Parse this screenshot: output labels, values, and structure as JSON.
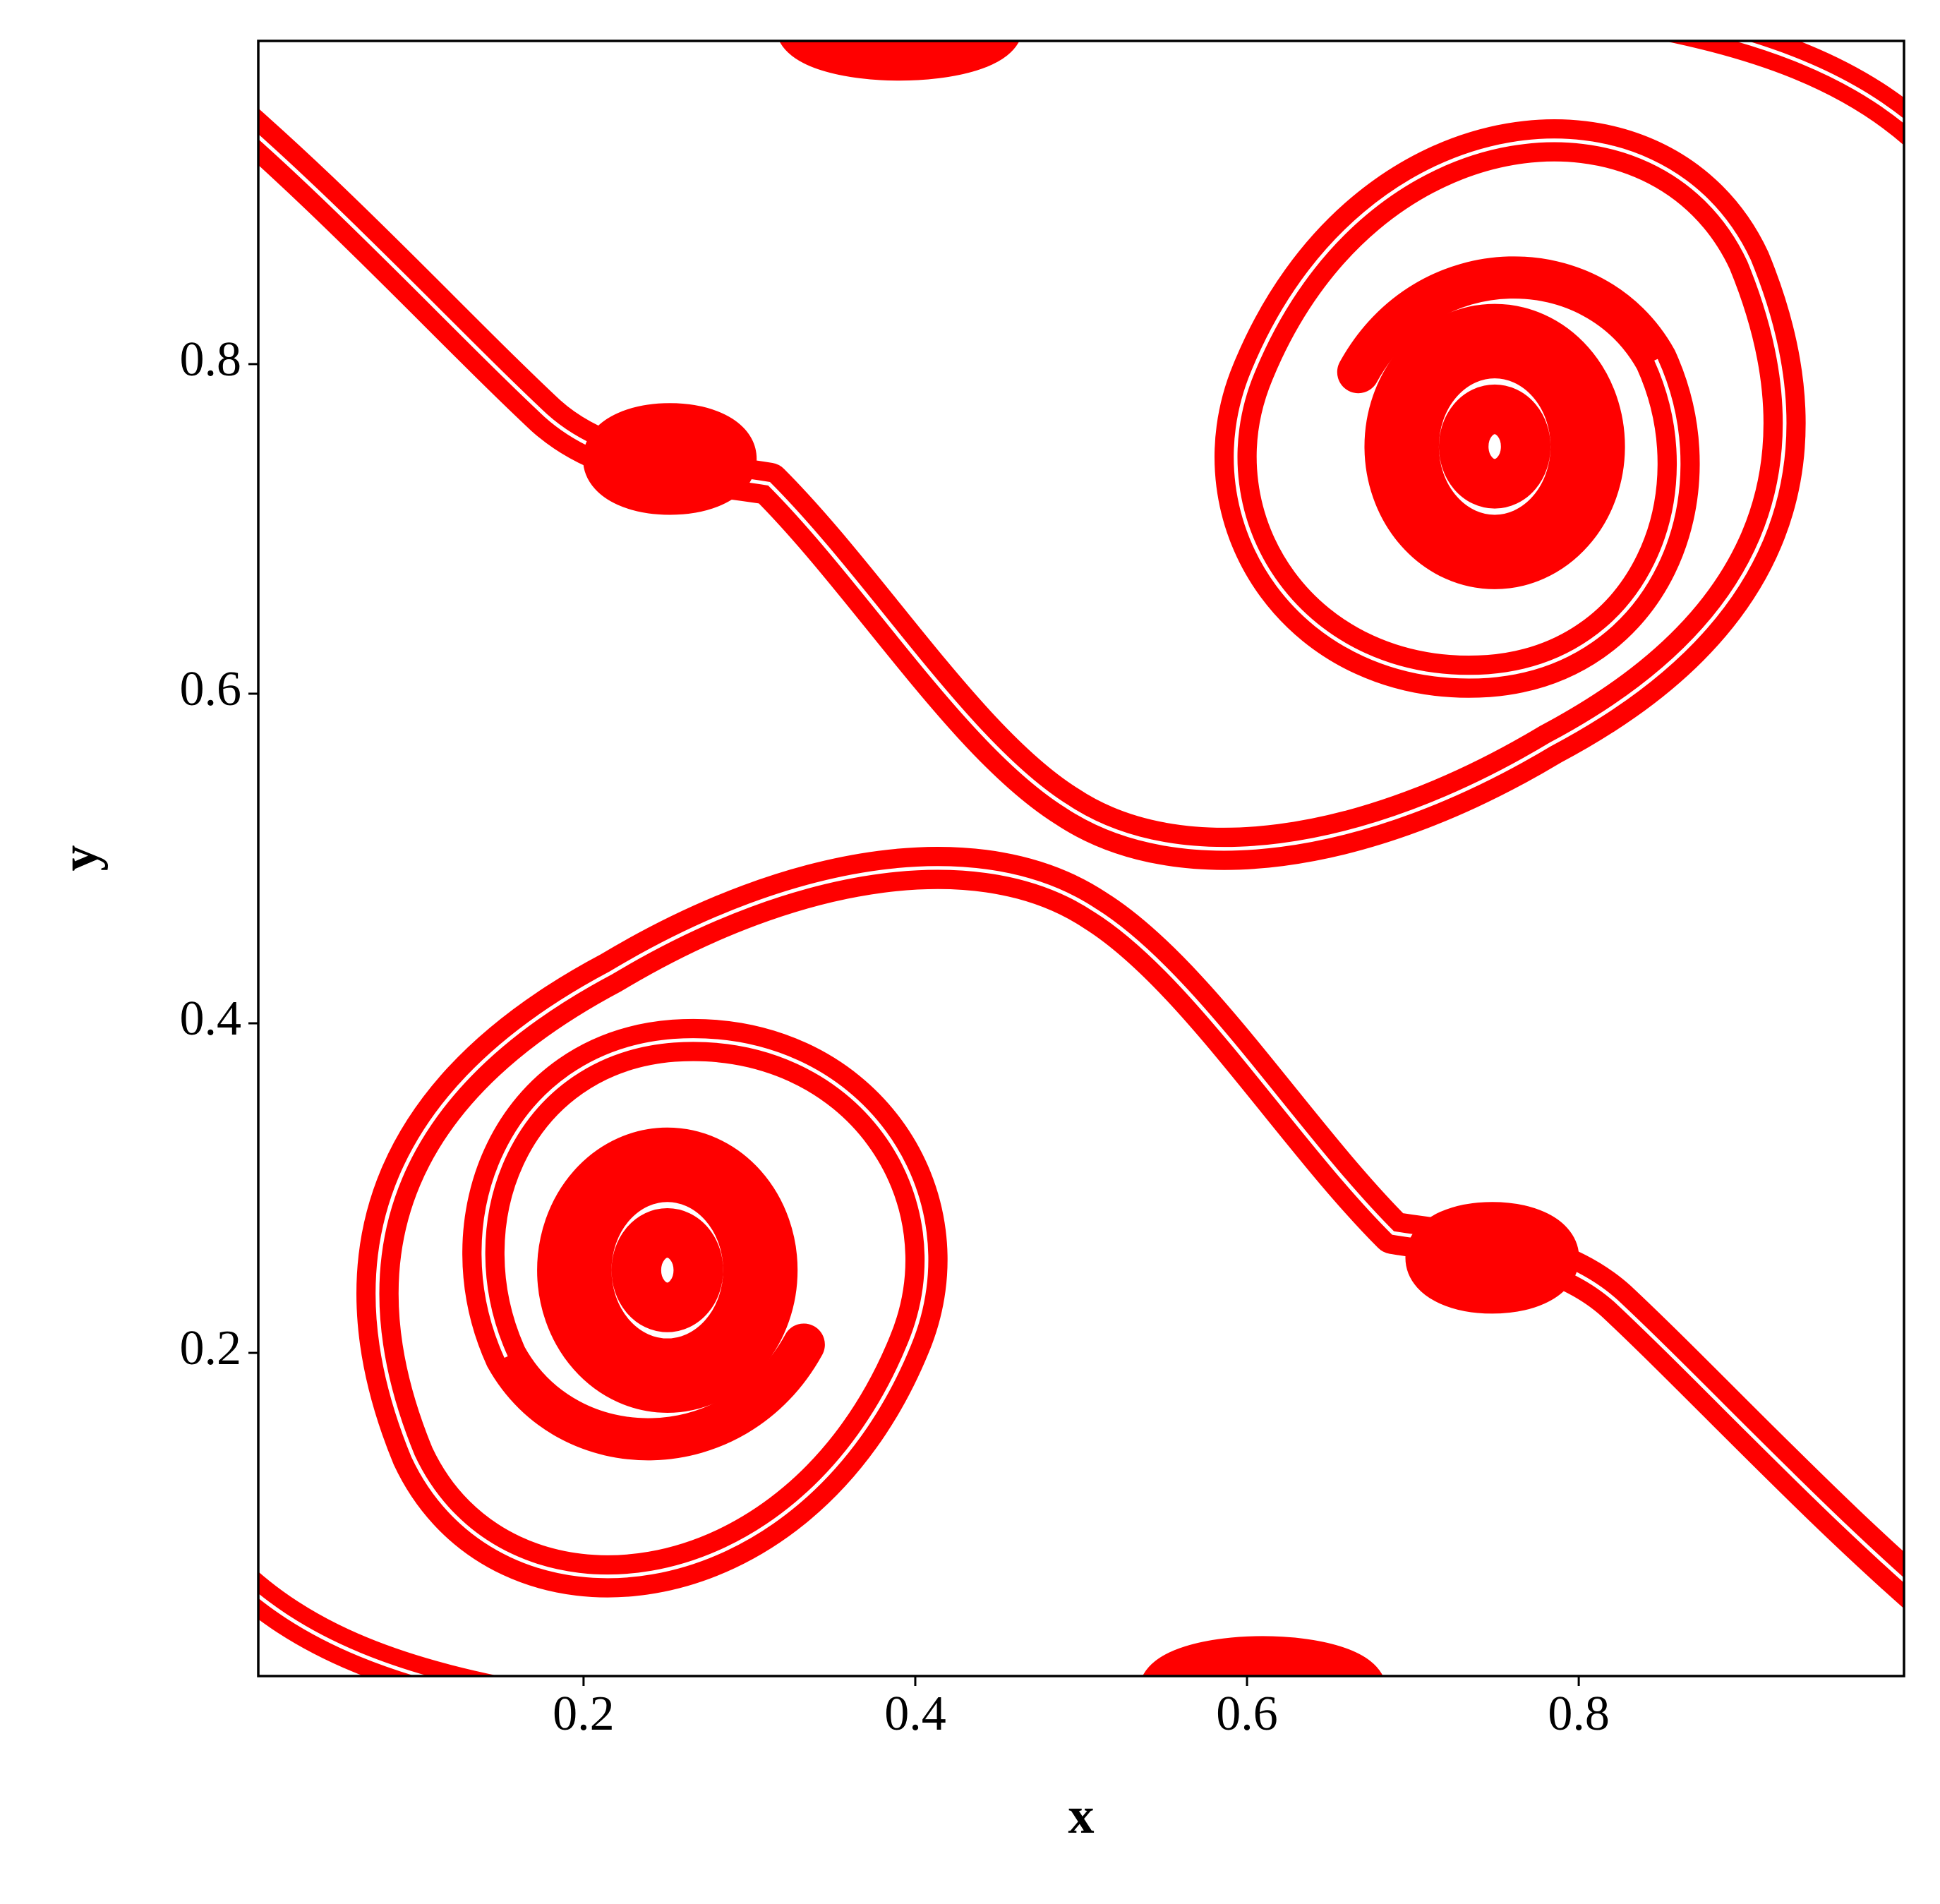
{
  "chart_data": {
    "type": "contour",
    "x_label": "x",
    "y_label": "y",
    "xlim": [
      0.0039,
      0.9961
    ],
    "ylim": [
      0.0039,
      0.9961
    ],
    "xticks": [
      0.2,
      0.4,
      0.6,
      0.8
    ],
    "yticks": [
      0.2,
      0.4,
      0.6,
      0.8
    ],
    "color": "#ff0000"
  }
}
